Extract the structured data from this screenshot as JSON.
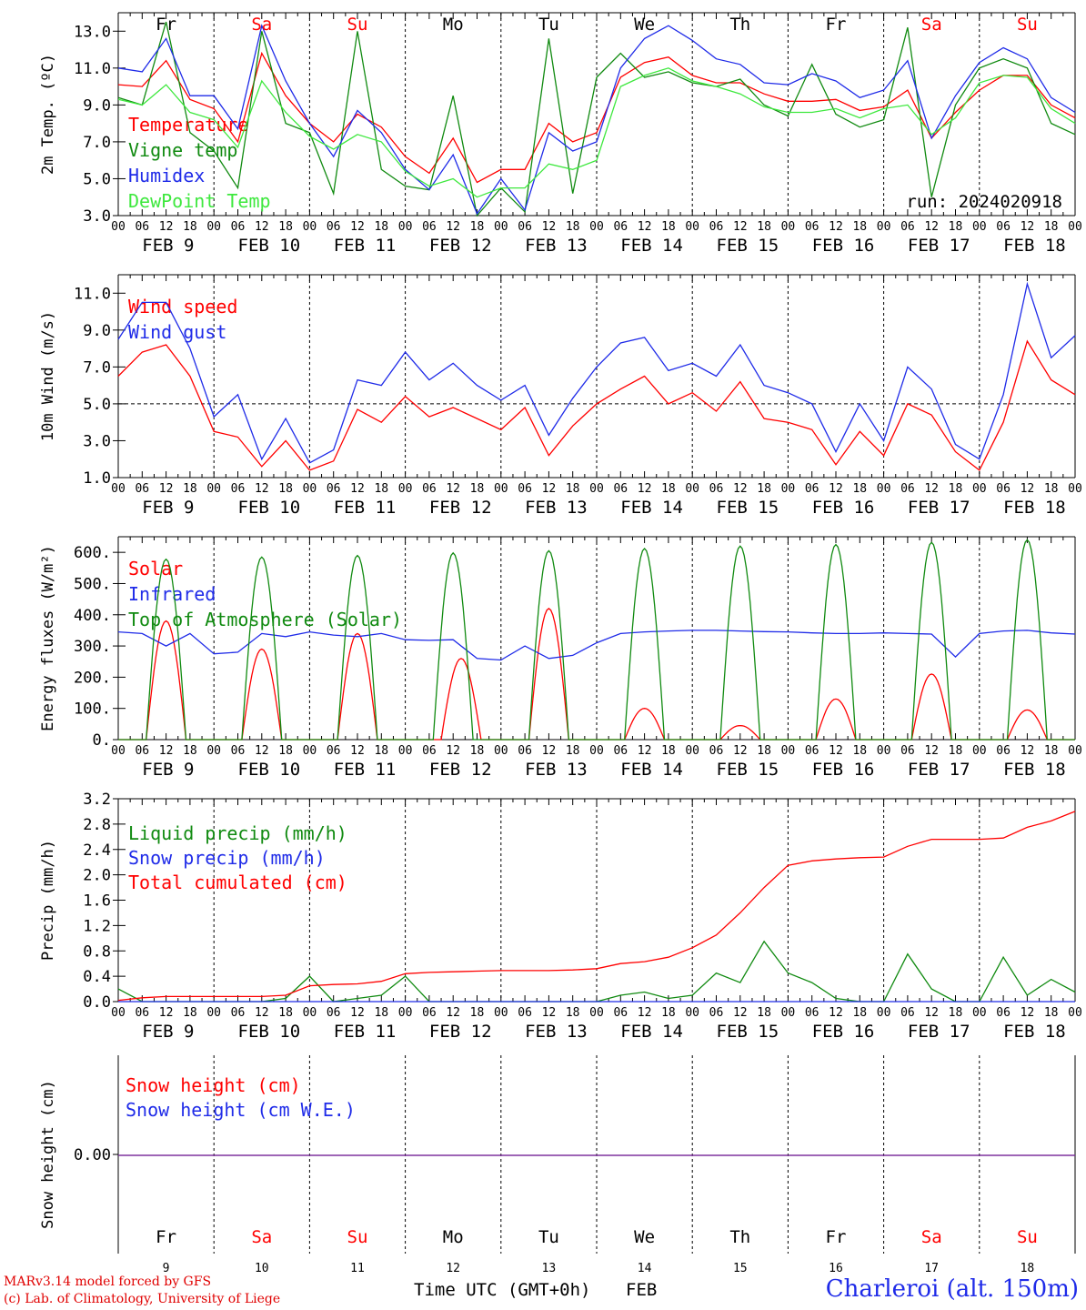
{
  "credits": {
    "line1": "MARv3.14 model forced by GFS",
    "line2": "(c) Lab. of Climatology, University of Liege"
  },
  "station_label": "Charleroi (alt. 150m)",
  "x_title": "Time UTC (GMT+0h)",
  "x_month": "FEB",
  "run_label": "run: 2024020918",
  "days": [
    {
      "date": "9",
      "weekday": "Fr",
      "weekend": false,
      "axis_label": "FEB  9"
    },
    {
      "date": "10",
      "weekday": "Sa",
      "weekend": true,
      "axis_label": "FEB 10"
    },
    {
      "date": "11",
      "weekday": "Su",
      "weekend": true,
      "axis_label": "FEB 11"
    },
    {
      "date": "12",
      "weekday": "Mo",
      "weekend": false,
      "axis_label": "FEB 12"
    },
    {
      "date": "13",
      "weekday": "Tu",
      "weekend": false,
      "axis_label": "FEB 13"
    },
    {
      "date": "14",
      "weekday": "We",
      "weekend": false,
      "axis_label": "FEB 14"
    },
    {
      "date": "15",
      "weekday": "Th",
      "weekend": false,
      "axis_label": "FEB 15"
    },
    {
      "date": "16",
      "weekday": "Fr",
      "weekend": false,
      "axis_label": "FEB 16"
    },
    {
      "date": "17",
      "weekday": "Sa",
      "weekend": true,
      "axis_label": "FEB 17"
    },
    {
      "date": "18",
      "weekday": "Su",
      "weekend": true,
      "axis_label": "FEB 18"
    }
  ],
  "hour_ticks": [
    "00",
    "06",
    "12",
    "18"
  ],
  "colors": {
    "red": "#ff0000",
    "green": "#108a10",
    "blue": "#1f2be8",
    "lightgreen": "#3ee83e",
    "purple": "#7a2a9a"
  },
  "chart_data": [
    {
      "type": "line",
      "ylabel": "2m Temp. (ºC)",
      "ylim": [
        3.0,
        14.0
      ],
      "yticks": [
        "3.0",
        "5.0",
        "7.0",
        "9.0",
        "11.0",
        "13.0"
      ],
      "x_hours": [
        0,
        6,
        12,
        18,
        24,
        30,
        36,
        42,
        48,
        54,
        60,
        66,
        72,
        78,
        84,
        90,
        96,
        102,
        108,
        114,
        120,
        126,
        132,
        138,
        144,
        150,
        156,
        162,
        168,
        174,
        180,
        186,
        192,
        198,
        204,
        210,
        216,
        222,
        228,
        234,
        240
      ],
      "series": [
        {
          "name": "Temperature",
          "color": "red",
          "values": [
            10.1,
            10.0,
            11.4,
            9.3,
            8.8,
            7.0,
            11.8,
            9.5,
            8.0,
            7.0,
            8.5,
            7.8,
            6.2,
            5.3,
            7.2,
            4.8,
            5.5,
            5.5,
            8.0,
            7.0,
            7.5,
            10.5,
            11.3,
            11.6,
            10.6,
            10.2,
            10.2,
            9.6,
            9.2,
            9.2,
            9.3,
            8.7,
            8.9,
            9.8,
            7.2,
            8.6,
            9.8,
            10.6,
            10.6,
            9.0,
            8.3
          ]
        },
        {
          "name": "Vigne temp",
          "color": "green",
          "values": [
            9.4,
            9.0,
            13.5,
            7.5,
            6.5,
            4.5,
            13.0,
            8.0,
            7.5,
            4.2,
            13.0,
            5.5,
            4.6,
            4.4,
            9.5,
            3.0,
            4.5,
            3.2,
            12.6,
            4.2,
            10.5,
            11.8,
            10.5,
            10.8,
            10.2,
            10.0,
            10.4,
            9.0,
            8.4,
            11.2,
            8.5,
            7.8,
            8.2,
            13.2,
            4.0,
            9.0,
            11.0,
            11.5,
            11.0,
            8.0,
            7.4
          ]
        },
        {
          "name": "Humidex",
          "color": "blue",
          "values": [
            11.0,
            10.8,
            12.6,
            9.5,
            9.5,
            7.7,
            13.3,
            10.3,
            8.0,
            6.2,
            8.7,
            7.5,
            5.5,
            4.4,
            6.3,
            3.1,
            5.0,
            3.3,
            7.5,
            6.5,
            7.0,
            11.0,
            12.6,
            13.3,
            12.5,
            11.5,
            11.2,
            10.2,
            10.1,
            10.7,
            10.3,
            9.4,
            9.8,
            11.4,
            7.2,
            9.5,
            11.3,
            12.1,
            11.5,
            9.4,
            8.6
          ]
        },
        {
          "name": "DewPoint Temp",
          "color": "lightgreen",
          "values": [
            9.3,
            9.0,
            10.1,
            8.6,
            8.2,
            6.7,
            10.3,
            8.6,
            7.3,
            6.6,
            7.4,
            7.0,
            5.4,
            4.6,
            5.0,
            4.0,
            4.5,
            4.5,
            5.8,
            5.5,
            6.0,
            10.0,
            10.6,
            11.0,
            10.3,
            10.0,
            9.6,
            8.9,
            8.6,
            8.6,
            8.8,
            8.3,
            8.8,
            9.0,
            7.4,
            8.3,
            10.2,
            10.6,
            10.5,
            8.8,
            8.0
          ]
        }
      ]
    },
    {
      "type": "line",
      "ylabel": "10m Wind (m/s)",
      "ylim": [
        1.0,
        12.0
      ],
      "yticks": [
        "1.0",
        "3.0",
        "5.0",
        "7.0",
        "9.0",
        "11.0"
      ],
      "reference_line": 5.0,
      "x_hours": [
        0,
        6,
        12,
        18,
        24,
        30,
        36,
        42,
        48,
        54,
        60,
        66,
        72,
        78,
        84,
        90,
        96,
        102,
        108,
        114,
        120,
        126,
        132,
        138,
        144,
        150,
        156,
        162,
        168,
        174,
        180,
        186,
        192,
        198,
        204,
        210,
        216,
        222,
        228,
        234,
        240
      ],
      "series": [
        {
          "name": "Wind speed",
          "color": "red",
          "values": [
            6.5,
            7.8,
            8.2,
            6.5,
            3.5,
            3.2,
            1.6,
            3.0,
            1.4,
            1.9,
            4.7,
            4.0,
            5.4,
            4.3,
            4.8,
            4.2,
            3.6,
            4.8,
            2.2,
            3.8,
            5.0,
            5.8,
            6.5,
            5.0,
            5.6,
            4.6,
            6.2,
            4.2,
            4.0,
            3.6,
            1.7,
            3.5,
            2.2,
            5.0,
            4.4,
            2.4,
            1.4,
            4.0,
            8.4,
            6.3,
            5.5
          ]
        },
        {
          "name": "Wind gust",
          "color": "blue",
          "values": [
            8.5,
            10.5,
            10.5,
            8.0,
            4.3,
            5.5,
            2.0,
            4.2,
            1.8,
            2.5,
            6.3,
            6.0,
            7.8,
            6.3,
            7.2,
            6.0,
            5.2,
            6.0,
            3.3,
            5.3,
            7.0,
            8.3,
            8.6,
            6.8,
            7.2,
            6.5,
            8.2,
            6.0,
            5.6,
            5.0,
            2.4,
            5.0,
            3.0,
            7.0,
            5.8,
            2.8,
            2.0,
            5.5,
            11.5,
            7.5,
            8.7
          ]
        }
      ]
    },
    {
      "type": "line",
      "ylabel": "Energy fluxes (W/m²)",
      "ylim": [
        0,
        650
      ],
      "yticks": [
        "0.",
        "100.",
        "200.",
        "300.",
        "400.",
        "500.",
        "600."
      ],
      "series": [
        {
          "name": "Solar",
          "color": "red",
          "peaks": [
            {
              "hour": 12,
              "value": 380
            },
            {
              "hour": 36,
              "value": 290
            },
            {
              "hour": 60,
              "value": 340
            },
            {
              "hour": 86,
              "value": 260
            },
            {
              "hour": 108,
              "value": 420
            },
            {
              "hour": 132,
              "value": 100
            },
            {
              "hour": 156,
              "value": 45
            },
            {
              "hour": 180,
              "value": 130
            },
            {
              "hour": 204,
              "value": 210
            },
            {
              "hour": 228,
              "value": 95
            }
          ]
        },
        {
          "name": "Infrared",
          "color": "blue",
          "x_hours": [
            0,
            6,
            12,
            18,
            24,
            30,
            36,
            42,
            48,
            54,
            60,
            66,
            72,
            78,
            84,
            90,
            96,
            102,
            108,
            114,
            120,
            126,
            132,
            138,
            144,
            150,
            156,
            162,
            168,
            174,
            180,
            186,
            192,
            198,
            204,
            210,
            216,
            222,
            228,
            234,
            240
          ],
          "values": [
            345,
            340,
            300,
            340,
            275,
            280,
            340,
            330,
            345,
            335,
            330,
            340,
            320,
            318,
            320,
            260,
            255,
            300,
            260,
            270,
            310,
            340,
            345,
            348,
            350,
            350,
            348,
            346,
            345,
            342,
            340,
            340,
            342,
            340,
            338,
            265,
            340,
            348,
            350,
            342,
            338
          ]
        },
        {
          "name": "Top of Atmosphere (Solar)",
          "color": "green",
          "peaks": [
            {
              "hour": 12,
              "value": 578
            },
            {
              "hour": 36,
              "value": 585
            },
            {
              "hour": 60,
              "value": 590
            },
            {
              "hour": 84,
              "value": 598
            },
            {
              "hour": 108,
              "value": 605
            },
            {
              "hour": 132,
              "value": 612
            },
            {
              "hour": 156,
              "value": 620
            },
            {
              "hour": 180,
              "value": 625
            },
            {
              "hour": 204,
              "value": 632
            },
            {
              "hour": 228,
              "value": 640
            }
          ]
        }
      ]
    },
    {
      "type": "line",
      "ylabel": "Precip (mm/h)",
      "ylim": [
        0.0,
        3.2
      ],
      "yticks": [
        "0.0",
        "0.4",
        "0.8",
        "1.2",
        "1.6",
        "2.0",
        "2.4",
        "2.8",
        "3.2"
      ],
      "x_hours": [
        0,
        6,
        12,
        18,
        24,
        30,
        36,
        42,
        48,
        54,
        60,
        66,
        72,
        78,
        84,
        90,
        96,
        102,
        108,
        114,
        120,
        126,
        132,
        138,
        144,
        150,
        156,
        162,
        168,
        174,
        180,
        186,
        192,
        198,
        204,
        210,
        216,
        222,
        228,
        234,
        240
      ],
      "series": [
        {
          "name": "Liquid precip (mm/h)",
          "color": "green",
          "values": [
            0.2,
            0.0,
            0.0,
            0.0,
            0.0,
            0.0,
            0.0,
            0.05,
            0.4,
            0.0,
            0.05,
            0.1,
            0.4,
            0.0,
            0.0,
            0.0,
            0.0,
            0.0,
            0.0,
            0.0,
            0.0,
            0.1,
            0.15,
            0.05,
            0.1,
            0.45,
            0.3,
            0.95,
            0.45,
            0.3,
            0.05,
            0.0,
            0.0,
            0.75,
            0.2,
            0.0,
            0.0,
            0.7,
            0.1,
            0.35,
            0.15
          ]
        },
        {
          "name": "Snow precip (mm/h)",
          "color": "blue",
          "values": [
            0,
            0,
            0,
            0,
            0,
            0,
            0,
            0,
            0,
            0,
            0,
            0,
            0,
            0,
            0,
            0,
            0,
            0,
            0,
            0,
            0,
            0,
            0,
            0,
            0,
            0,
            0,
            0,
            0,
            0,
            0,
            0,
            0,
            0,
            0,
            0,
            0,
            0,
            0,
            0,
            0
          ]
        },
        {
          "name": "Total cumulated (cm)",
          "color": "red",
          "values": [
            0.02,
            0.06,
            0.08,
            0.08,
            0.08,
            0.08,
            0.08,
            0.1,
            0.25,
            0.27,
            0.28,
            0.32,
            0.44,
            0.46,
            0.47,
            0.48,
            0.49,
            0.49,
            0.49,
            0.5,
            0.52,
            0.6,
            0.63,
            0.7,
            0.85,
            1.05,
            1.4,
            1.8,
            2.15,
            2.22,
            2.25,
            2.27,
            2.28,
            2.45,
            2.56,
            2.56,
            2.56,
            2.58,
            2.75,
            2.85,
            3.0
          ]
        }
      ]
    },
    {
      "type": "line",
      "ylabel": "Snow height (cm)",
      "ytick": "0.00",
      "series": [
        {
          "name": "Snow height (cm)",
          "color": "red",
          "values": [
            0,
            0
          ]
        },
        {
          "name": "Snow height (cm W.E.)",
          "color": "blue",
          "values": [
            0,
            0
          ]
        }
      ]
    }
  ]
}
